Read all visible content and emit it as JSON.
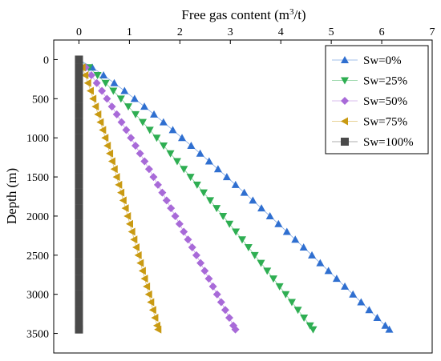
{
  "chart_data": {
    "type": "scatter",
    "title": "",
    "xlabel": "Free gas content (m³/t)",
    "xlabel_parts": {
      "main": "Free gas content (m",
      "sup": "3",
      "tail": "/t)"
    },
    "ylabel": "Depth (m)",
    "x_axis_position": "top",
    "y_inverted": true,
    "xlim": [
      -0.5,
      7
    ],
    "ylim": [
      -250,
      3750
    ],
    "xticks": [
      0,
      1,
      2,
      3,
      4,
      5,
      6,
      7
    ],
    "yticks": [
      0,
      500,
      1000,
      1500,
      2000,
      2500,
      3000,
      3500
    ],
    "grid": false,
    "legend_position": "top-right",
    "depths": [
      0,
      100,
      200,
      300,
      400,
      500,
      600,
      700,
      800,
      900,
      1000,
      1100,
      1200,
      1300,
      1400,
      1500,
      1600,
      1700,
      1800,
      1900,
      2000,
      2100,
      2200,
      2300,
      2400,
      2500,
      2600,
      2700,
      2800,
      2900,
      3000,
      3100,
      3200,
      3300,
      3400,
      3450
    ],
    "series": [
      {
        "name": "Sw=0%",
        "marker": "triangle-up",
        "color": "#2f6fd0",
        "max_value": 6.15,
        "exponent": 0.89
      },
      {
        "name": "Sw=25%",
        "marker": "triangle-down",
        "color": "#2eae52",
        "max_value": 4.64,
        "exponent": 0.89
      },
      {
        "name": "Sw=50%",
        "marker": "diamond",
        "color": "#a86ad8",
        "max_value": 3.1,
        "exponent": 0.89
      },
      {
        "name": "Sw=75%",
        "marker": "triangle-left",
        "color": "#c99a12",
        "max_value": 1.57,
        "exponent": 0.89
      },
      {
        "name": "Sw=100%",
        "marker": "square",
        "color": "#4a4a4a",
        "max_value": 0.0,
        "exponent": 1.0
      }
    ]
  }
}
